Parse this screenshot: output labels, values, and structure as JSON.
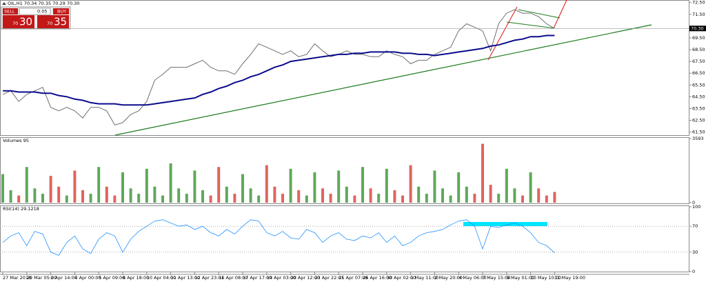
{
  "header": {
    "symbol": "OIL,H1 70.34 70.35 70.29 70.30"
  },
  "trade_panel": {
    "sell": "SELL",
    "buy": "BUY",
    "lot": "0.05",
    "sell_big": "70",
    "sell_small": "30",
    "buy_big": "70",
    "buy_small": "35"
  },
  "chart_data": [
    {
      "type": "line",
      "categories": [
        "27 Mar 2018",
        null,
        null,
        "29 Mar 05:00",
        null,
        null,
        "2 Apr 14:00",
        null,
        null,
        "4 Apr 00:00",
        null,
        null,
        "5 Apr 09:00",
        null,
        null,
        "6 Apr 18:00",
        null,
        null,
        "10 Apr 04:00",
        null,
        null,
        "11 Apr 13:00",
        null,
        null,
        "12 Apr 23:01",
        null,
        null,
        "16 Apr 08:00",
        null,
        null,
        "17 Apr 17:00",
        null,
        null,
        "19 Apr 03:00",
        null,
        null,
        "20 Apr 12:00",
        null,
        null,
        "23 Apr 22:01",
        null,
        null,
        "25 Apr 07:00",
        null,
        null,
        "26 Apr 16:00",
        null,
        null,
        "30 Apr 02:00",
        null,
        null,
        "1 May 11:00",
        null,
        null,
        "2 May 20:00",
        null,
        null,
        "4 May 06:00",
        null,
        null,
        "7 May 15:00",
        null,
        null,
        "9 May 01:00",
        null,
        null,
        "10 May 10:00",
        null,
        null,
        "11 May 19:00"
      ],
      "series": [
        {
          "name": "OIL,H1",
          "color": "#6e6e6e",
          "values": [
            64.7,
            65.0,
            64.1,
            64.7,
            65.0,
            65.3,
            63.6,
            63.3,
            63.6,
            63.3,
            62.7,
            63.6,
            63.6,
            63.3,
            62.1,
            62.3,
            63.0,
            63.3,
            64.1,
            65.9,
            66.4,
            67.0,
            67.0,
            67.0,
            67.3,
            67.6,
            67.0,
            66.7,
            66.7,
            66.4,
            67.3,
            68.1,
            69.0,
            68.7,
            68.4,
            68.1,
            68.4,
            67.9,
            68.1,
            69.0,
            68.4,
            67.9,
            68.1,
            68.4,
            68.1,
            68.1,
            67.9,
            67.9,
            68.4,
            68.1,
            67.9,
            67.3,
            67.6,
            67.6,
            68.1,
            68.4,
            68.7,
            70.1,
            70.7,
            70.4,
            70.1,
            68.4,
            70.7,
            71.6,
            71.9,
            71.6,
            71.6,
            71.3,
            70.7,
            70.3
          ]
        },
        {
          "name": "MA",
          "color": "#0a0a8c",
          "values": [
            65.0,
            65.0,
            64.9,
            64.9,
            64.9,
            64.8,
            64.8,
            64.6,
            64.5,
            64.3,
            64.2,
            64.0,
            63.9,
            63.9,
            63.9,
            63.8,
            63.8,
            63.8,
            63.8,
            63.9,
            64.0,
            64.1,
            64.2,
            64.3,
            64.4,
            64.7,
            64.9,
            65.2,
            65.4,
            65.7,
            65.9,
            66.2,
            66.4,
            66.7,
            67.0,
            67.2,
            67.5,
            67.6,
            67.7,
            67.8,
            67.9,
            68.0,
            68.1,
            68.1,
            68.2,
            68.2,
            68.3,
            68.3,
            68.3,
            68.3,
            68.2,
            68.2,
            68.1,
            68.1,
            68.0,
            68.1,
            68.2,
            68.3,
            68.4,
            68.5,
            68.6,
            68.8,
            68.9,
            69.1,
            69.3,
            69.4,
            69.6,
            69.6,
            69.7,
            69.7
          ]
        }
      ],
      "ylim": [
        61.3,
        72.6
      ],
      "yticks": [
        {
          "value": 72.5,
          "label": "72.50"
        },
        {
          "value": 71.5,
          "label": "71.50"
        },
        {
          "value": 69.5,
          "label": "69.50"
        },
        {
          "value": 68.5,
          "label": "68.50"
        },
        {
          "value": 67.5,
          "label": "67.50"
        },
        {
          "value": 66.5,
          "label": "66.50"
        },
        {
          "value": 65.5,
          "label": "65.50"
        },
        {
          "value": 64.5,
          "label": "64.50"
        },
        {
          "value": 63.5,
          "label": "63.50"
        },
        {
          "value": 62.5,
          "label": "62.50"
        },
        {
          "value": 61.5,
          "label": "61.50"
        }
      ],
      "price_line": {
        "value": 70.3,
        "label": "70.30"
      }
    },
    {
      "type": "bar",
      "title": "Volumes 95",
      "color_up": "#5fa85a",
      "color_down": "#e0645c",
      "values": [
        1600,
        700,
        400,
        2000,
        800,
        500,
        1500,
        900,
        400,
        1800,
        700,
        500,
        2000,
        900,
        400,
        1700,
        800,
        500,
        1900,
        900,
        400,
        2200,
        800,
        500,
        1800,
        700,
        400,
        2000,
        900,
        500,
        1600,
        800,
        400,
        2100,
        900,
        500,
        1900,
        700,
        400,
        1700,
        800,
        500,
        1800,
        900,
        400,
        2000,
        800,
        500,
        1900,
        700,
        400,
        2100,
        900,
        500,
        1800,
        800,
        400,
        1700,
        900,
        500,
        3300,
        1000,
        500,
        1900,
        800,
        400,
        1700,
        800,
        400,
        600
      ],
      "ylim": [
        0,
        3593
      ],
      "yticks": [
        3593,
        0
      ]
    },
    {
      "type": "line",
      "title": "RSI(14) 29.1218",
      "color": "#1e90ff",
      "values": [
        45,
        55,
        60,
        40,
        62,
        58,
        30,
        25,
        45,
        55,
        35,
        28,
        50,
        60,
        55,
        30,
        50,
        62,
        70,
        78,
        80,
        75,
        70,
        72,
        65,
        70,
        60,
        55,
        65,
        58,
        70,
        80,
        78,
        60,
        55,
        62,
        52,
        50,
        65,
        60,
        45,
        55,
        60,
        50,
        48,
        55,
        52,
        60,
        45,
        55,
        40,
        45,
        55,
        60,
        62,
        65,
        72,
        78,
        80,
        70,
        35,
        70,
        68,
        72,
        75,
        70,
        60,
        45,
        40,
        29
      ],
      "ylim": [
        0,
        100
      ],
      "yticks": [
        100,
        70,
        30,
        0
      ],
      "levels": [
        70,
        30
      ]
    }
  ]
}
